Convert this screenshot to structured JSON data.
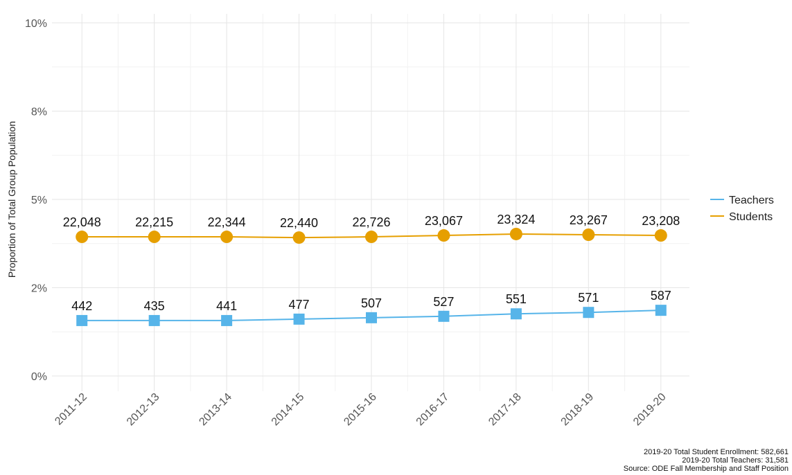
{
  "chart_data": {
    "type": "line",
    "ylabel": "Proportion of Total Group Population",
    "categories": [
      "2011-12",
      "2012-13",
      "2013-14",
      "2014-15",
      "2015-16",
      "2016-17",
      "2017-18",
      "2018-19",
      "2019-20"
    ],
    "series": [
      {
        "name": "Teachers",
        "color": "#56b4e9",
        "marker": "square",
        "values": [
          1.57,
          1.57,
          1.57,
          1.61,
          1.65,
          1.69,
          1.76,
          1.8,
          1.86
        ],
        "point_labels": [
          "442",
          "435",
          "441",
          "477",
          "507",
          "527",
          "551",
          "571",
          "587"
        ]
      },
      {
        "name": "Students",
        "color": "#e69f00",
        "marker": "circle",
        "values": [
          3.94,
          3.94,
          3.94,
          3.92,
          3.94,
          3.98,
          4.02,
          4.0,
          3.98
        ],
        "point_labels": [
          "22,048",
          "22,215",
          "22,344",
          "22,440",
          "22,726",
          "23,067",
          "23,324",
          "23,267",
          "23,208"
        ]
      }
    ],
    "ylim": [
      0,
      10
    ],
    "yticks": [
      {
        "value": 0,
        "label": "0%"
      },
      {
        "value": 2.5,
        "label": "2%"
      },
      {
        "value": 5,
        "label": "5%"
      },
      {
        "value": 7.5,
        "label": "8%"
      },
      {
        "value": 10,
        "label": "10%"
      }
    ],
    "grid": true,
    "legend": "right",
    "notes": [
      "2019-20 Total Student Enrollment: 582,661",
      "2019-20 Total Teachers: 31,581",
      "Source: ODE Fall Membership and Staff Position"
    ]
  }
}
